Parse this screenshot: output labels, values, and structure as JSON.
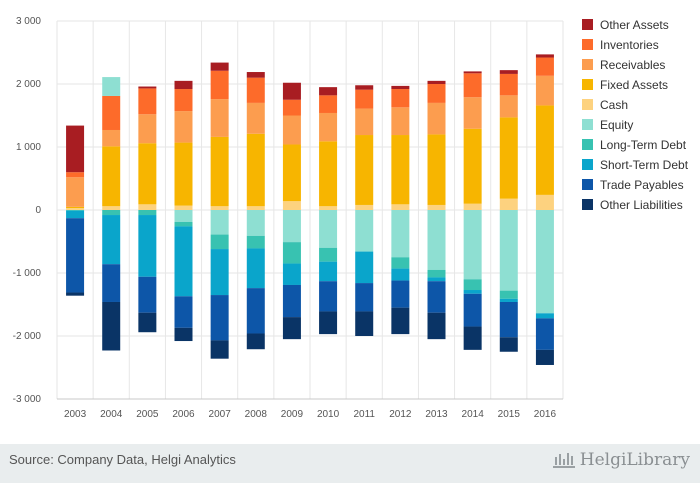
{
  "chart_data": {
    "type": "bar",
    "stacked": true,
    "categories": [
      "2003",
      "2004",
      "2005",
      "2006",
      "2007",
      "2008",
      "2009",
      "2010",
      "2011",
      "2012",
      "2013",
      "2014",
      "2015",
      "2016"
    ],
    "ylim": [
      -3000,
      3000
    ],
    "yticks": [
      -3000,
      -2000,
      -1000,
      0,
      1000,
      2000,
      3000
    ],
    "ytick_labels": [
      "-3 000",
      "-2 000",
      "-1 000",
      "0",
      "1 000",
      "2 000",
      "3 000"
    ],
    "grid": true,
    "legend_position": "right",
    "positive_series": [
      {
        "name": "Cash",
        "color": "#fdd27f",
        "values": [
          30,
          60,
          90,
          70,
          60,
          60,
          140,
          60,
          80,
          90,
          80,
          100,
          180,
          240
        ]
      },
      {
        "name": "Fixed Assets",
        "color": "#f7b500",
        "values": [
          20,
          950,
          970,
          1000,
          1100,
          1150,
          900,
          1030,
          1110,
          1100,
          1120,
          1190,
          1290,
          1420
        ]
      },
      {
        "name": "Receivables",
        "color": "#fc9d4f",
        "values": [
          470,
          260,
          460,
          500,
          600,
          490,
          460,
          450,
          420,
          440,
          500,
          500,
          350,
          470
        ]
      },
      {
        "name": "Inventories",
        "color": "#fd6b2a",
        "values": [
          80,
          540,
          410,
          350,
          450,
          400,
          250,
          280,
          300,
          290,
          300,
          380,
          340,
          290
        ]
      },
      {
        "name": "Equity",
        "color": "#8edfd2",
        "values": [
          0,
          300,
          0,
          0,
          0,
          0,
          0,
          0,
          0,
          0,
          0,
          0,
          0,
          0
        ]
      },
      {
        "name": "Other Assets",
        "color": "#a81d22",
        "values": [
          740,
          0,
          30,
          130,
          130,
          90,
          270,
          130,
          70,
          50,
          50,
          30,
          60,
          50
        ]
      }
    ],
    "negative_series": [
      {
        "name": "Equity",
        "color": "#8edfd2",
        "values": [
          0,
          0,
          0,
          -190,
          -390,
          -410,
          -510,
          -600,
          -660,
          -750,
          -950,
          -1100,
          -1280,
          -1640
        ]
      },
      {
        "name": "Long-Term Debt",
        "color": "#38c2b1",
        "values": [
          -10,
          -80,
          -80,
          -70,
          -230,
          -200,
          -340,
          -220,
          0,
          -180,
          -120,
          -170,
          -130,
          0
        ]
      },
      {
        "name": "Short-Term Debt",
        "color": "#0aa5cb",
        "values": [
          -120,
          -780,
          -980,
          -1110,
          -730,
          -630,
          -340,
          -310,
          -500,
          -190,
          -60,
          -60,
          -50,
          -80
        ]
      },
      {
        "name": "Trade Payables",
        "color": "#0d56a8",
        "values": [
          -1180,
          -600,
          -570,
          -500,
          -720,
          -720,
          -510,
          -480,
          -450,
          -430,
          -500,
          -520,
          -560,
          -500
        ]
      },
      {
        "name": "Other Liabilities",
        "color": "#0a3466",
        "values": [
          -50,
          -770,
          -310,
          -210,
          -290,
          -250,
          -350,
          -360,
          -390,
          -420,
          -420,
          -370,
          -230,
          -240
        ]
      }
    ],
    "legend": [
      {
        "name": "Other Assets",
        "color": "#a81d22"
      },
      {
        "name": "Inventories",
        "color": "#fd6b2a"
      },
      {
        "name": "Receivables",
        "color": "#fc9d4f"
      },
      {
        "name": "Fixed Assets",
        "color": "#f7b500"
      },
      {
        "name": "Cash",
        "color": "#fdd27f"
      },
      {
        "name": "Equity",
        "color": "#8edfd2"
      },
      {
        "name": "Long-Term Debt",
        "color": "#38c2b1"
      },
      {
        "name": "Short-Term Debt",
        "color": "#0aa5cb"
      },
      {
        "name": "Trade Payables",
        "color": "#0d56a8"
      },
      {
        "name": "Other Liabilities",
        "color": "#0a3466"
      }
    ]
  },
  "footer": {
    "source": "Source: Company Data, Helgi Analytics",
    "logo": "HelgiLibrary"
  }
}
